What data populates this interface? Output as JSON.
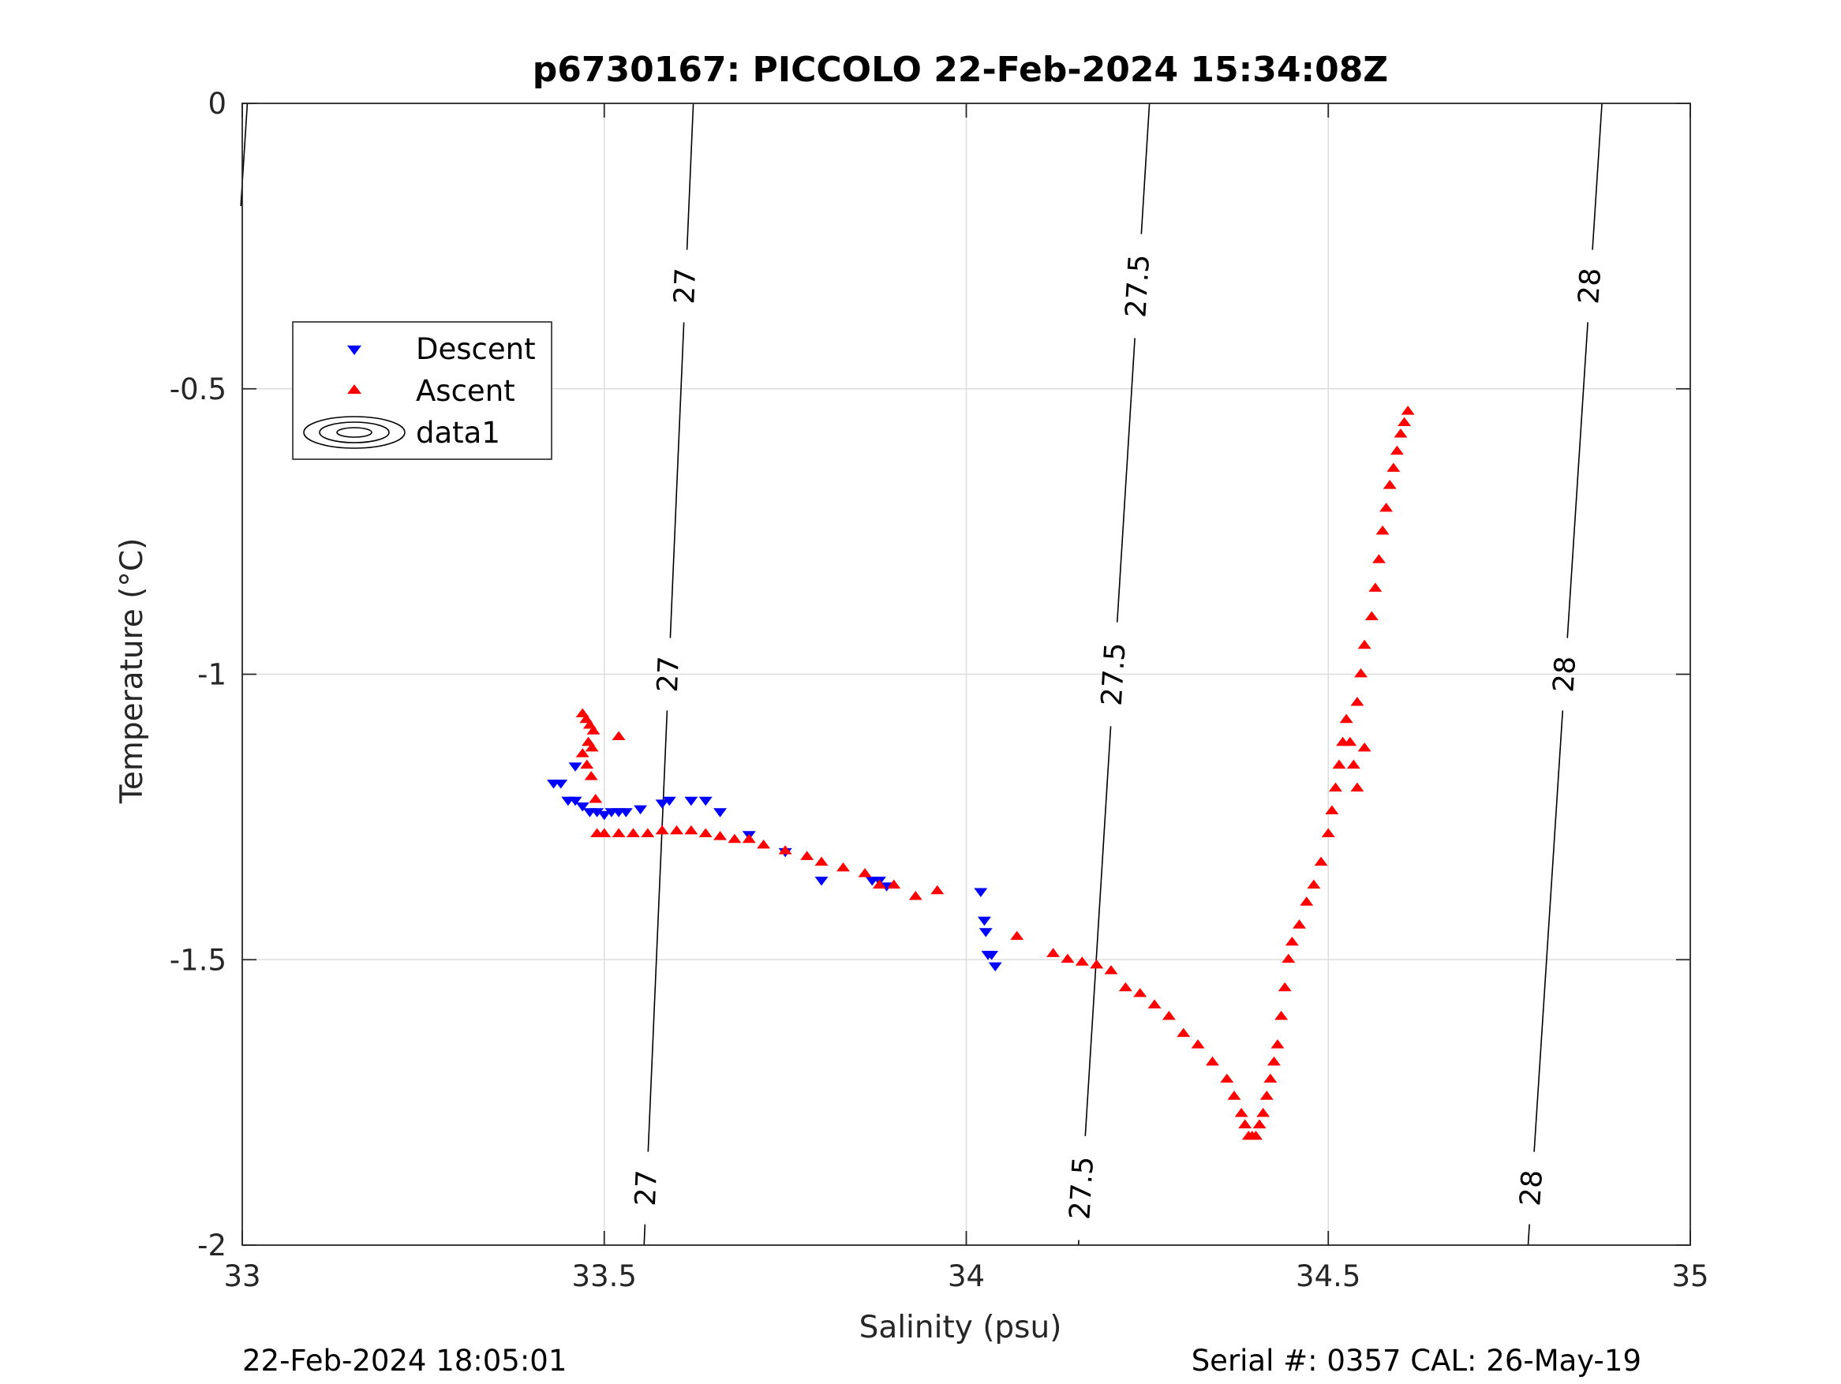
{
  "page": {
    "footer_left": "22-Feb-2024 18:05:01",
    "footer_right": "Serial #: 0357  CAL: 26-May-19"
  },
  "chart_data": {
    "type": "scatter",
    "title": "p6730167: PICCOLO 22-Feb-2024 15:34:08Z",
    "xlabel": "Salinity (psu)",
    "ylabel": "Temperature (°C)",
    "xlim": [
      33,
      35
    ],
    "ylim": [
      -2,
      0
    ],
    "x_ticks": [
      33,
      33.5,
      34,
      34.5,
      35
    ],
    "x_tick_labels": [
      "33",
      "33.5",
      "34",
      "34.5",
      "35"
    ],
    "y_ticks": [
      0,
      -0.5,
      -1,
      -1.5,
      -2
    ],
    "y_tick_labels": [
      "0",
      "-0.5",
      "-1",
      "-1.5",
      "-2"
    ],
    "grid": true,
    "legend_position": "top-left",
    "colors": {
      "descent": "#0000ff",
      "ascent": "#ff0000",
      "contour": "#000000",
      "grid": "#dcdcdc",
      "axis": "#262626"
    },
    "series": [
      {
        "name": "Descent",
        "marker": "triangle-down",
        "color": "#0000ff",
        "points": [
          [
            33.43,
            -1.19
          ],
          [
            33.44,
            -1.19
          ],
          [
            33.45,
            -1.22
          ],
          [
            33.46,
            -1.16
          ],
          [
            33.46,
            -1.22
          ],
          [
            33.47,
            -1.23
          ],
          [
            33.48,
            -1.24
          ],
          [
            33.49,
            -1.24
          ],
          [
            33.5,
            -1.245
          ],
          [
            33.51,
            -1.24
          ],
          [
            33.52,
            -1.24
          ],
          [
            33.53,
            -1.24
          ],
          [
            33.55,
            -1.235
          ],
          [
            33.58,
            -1.225
          ],
          [
            33.59,
            -1.22
          ],
          [
            33.62,
            -1.22
          ],
          [
            33.64,
            -1.22
          ],
          [
            33.66,
            -1.24
          ],
          [
            33.7,
            -1.28
          ],
          [
            33.75,
            -1.31
          ],
          [
            33.8,
            -1.36
          ],
          [
            33.87,
            -1.36
          ],
          [
            33.88,
            -1.36
          ],
          [
            33.89,
            -1.37
          ],
          [
            34.02,
            -1.38
          ],
          [
            34.025,
            -1.43
          ],
          [
            34.027,
            -1.45
          ],
          [
            34.03,
            -1.49
          ],
          [
            34.035,
            -1.49
          ],
          [
            34.04,
            -1.51
          ]
        ]
      },
      {
        "name": "Ascent",
        "marker": "triangle-up",
        "color": "#ff0000",
        "points": [
          [
            33.47,
            -1.07
          ],
          [
            33.475,
            -1.08
          ],
          [
            33.48,
            -1.09
          ],
          [
            33.485,
            -1.1
          ],
          [
            33.478,
            -1.12
          ],
          [
            33.483,
            -1.13
          ],
          [
            33.47,
            -1.14
          ],
          [
            33.476,
            -1.16
          ],
          [
            33.482,
            -1.18
          ],
          [
            33.488,
            -1.22
          ],
          [
            33.52,
            -1.11
          ],
          [
            33.49,
            -1.28
          ],
          [
            33.5,
            -1.28
          ],
          [
            33.52,
            -1.28
          ],
          [
            33.54,
            -1.28
          ],
          [
            33.56,
            -1.28
          ],
          [
            33.58,
            -1.275
          ],
          [
            33.6,
            -1.275
          ],
          [
            33.62,
            -1.275
          ],
          [
            33.64,
            -1.28
          ],
          [
            33.66,
            -1.285
          ],
          [
            33.68,
            -1.29
          ],
          [
            33.7,
            -1.29
          ],
          [
            33.72,
            -1.3
          ],
          [
            33.75,
            -1.31
          ],
          [
            33.78,
            -1.32
          ],
          [
            33.8,
            -1.33
          ],
          [
            33.83,
            -1.34
          ],
          [
            33.86,
            -1.35
          ],
          [
            33.88,
            -1.37
          ],
          [
            33.9,
            -1.37
          ],
          [
            33.93,
            -1.39
          ],
          [
            33.96,
            -1.38
          ],
          [
            34.07,
            -1.46
          ],
          [
            34.12,
            -1.49
          ],
          [
            34.14,
            -1.5
          ],
          [
            34.16,
            -1.505
          ],
          [
            34.18,
            -1.51
          ],
          [
            34.2,
            -1.52
          ],
          [
            34.22,
            -1.55
          ],
          [
            34.24,
            -1.56
          ],
          [
            34.26,
            -1.58
          ],
          [
            34.28,
            -1.6
          ],
          [
            34.3,
            -1.63
          ],
          [
            34.32,
            -1.65
          ],
          [
            34.34,
            -1.68
          ],
          [
            34.36,
            -1.71
          ],
          [
            34.37,
            -1.74
          ],
          [
            34.38,
            -1.77
          ],
          [
            34.385,
            -1.79
          ],
          [
            34.39,
            -1.81
          ],
          [
            34.395,
            -1.81
          ],
          [
            34.4,
            -1.81
          ],
          [
            34.405,
            -1.79
          ],
          [
            34.41,
            -1.77
          ],
          [
            34.415,
            -1.74
          ],
          [
            34.42,
            -1.71
          ],
          [
            34.425,
            -1.68
          ],
          [
            34.43,
            -1.65
          ],
          [
            34.435,
            -1.6
          ],
          [
            34.44,
            -1.55
          ],
          [
            34.445,
            -1.5
          ],
          [
            34.45,
            -1.47
          ],
          [
            34.46,
            -1.44
          ],
          [
            34.47,
            -1.4
          ],
          [
            34.48,
            -1.37
          ],
          [
            34.49,
            -1.33
          ],
          [
            34.5,
            -1.28
          ],
          [
            34.505,
            -1.24
          ],
          [
            34.51,
            -1.2
          ],
          [
            34.515,
            -1.16
          ],
          [
            34.52,
            -1.12
          ],
          [
            34.525,
            -1.08
          ],
          [
            34.53,
            -1.12
          ],
          [
            34.535,
            -1.16
          ],
          [
            34.54,
            -1.2
          ],
          [
            34.55,
            -1.13
          ],
          [
            34.54,
            -1.05
          ],
          [
            34.545,
            -1.0
          ],
          [
            34.55,
            -0.95
          ],
          [
            34.56,
            -0.9
          ],
          [
            34.565,
            -0.85
          ],
          [
            34.57,
            -0.8
          ],
          [
            34.575,
            -0.75
          ],
          [
            34.58,
            -0.71
          ],
          [
            34.585,
            -0.67
          ],
          [
            34.59,
            -0.64
          ],
          [
            34.595,
            -0.61
          ],
          [
            34.6,
            -0.58
          ],
          [
            34.605,
            -0.56
          ],
          [
            34.61,
            -0.54
          ]
        ]
      }
    ],
    "contours": [
      {
        "label": "27",
        "points": [
          [
            33.623,
            0
          ],
          [
            33.555,
            -2
          ]
        ],
        "label_at": [
          0.84,
          0.5,
          0.05
        ]
      },
      {
        "label": "27.5",
        "points": [
          [
            34.253,
            0
          ],
          [
            34.155,
            -2
          ]
        ],
        "label_at": [
          0.84,
          0.5,
          0.05
        ]
      },
      {
        "label": "28",
        "points": [
          [
            34.878,
            0
          ],
          [
            34.776,
            -2
          ]
        ],
        "label_at": [
          0.84,
          0.5,
          0.05
        ]
      },
      {
        "label": "",
        "points": [
          [
            33.007,
            0
          ],
          [
            32.998,
            -0.18
          ]
        ],
        "label_at": []
      }
    ],
    "legend": [
      {
        "label": "Descent",
        "marker": "triangle-down",
        "color": "#0000ff"
      },
      {
        "label": "Ascent",
        "marker": "triangle-up",
        "color": "#ff0000"
      },
      {
        "label": "data1",
        "marker": "contour",
        "color": "#000000"
      }
    ]
  }
}
